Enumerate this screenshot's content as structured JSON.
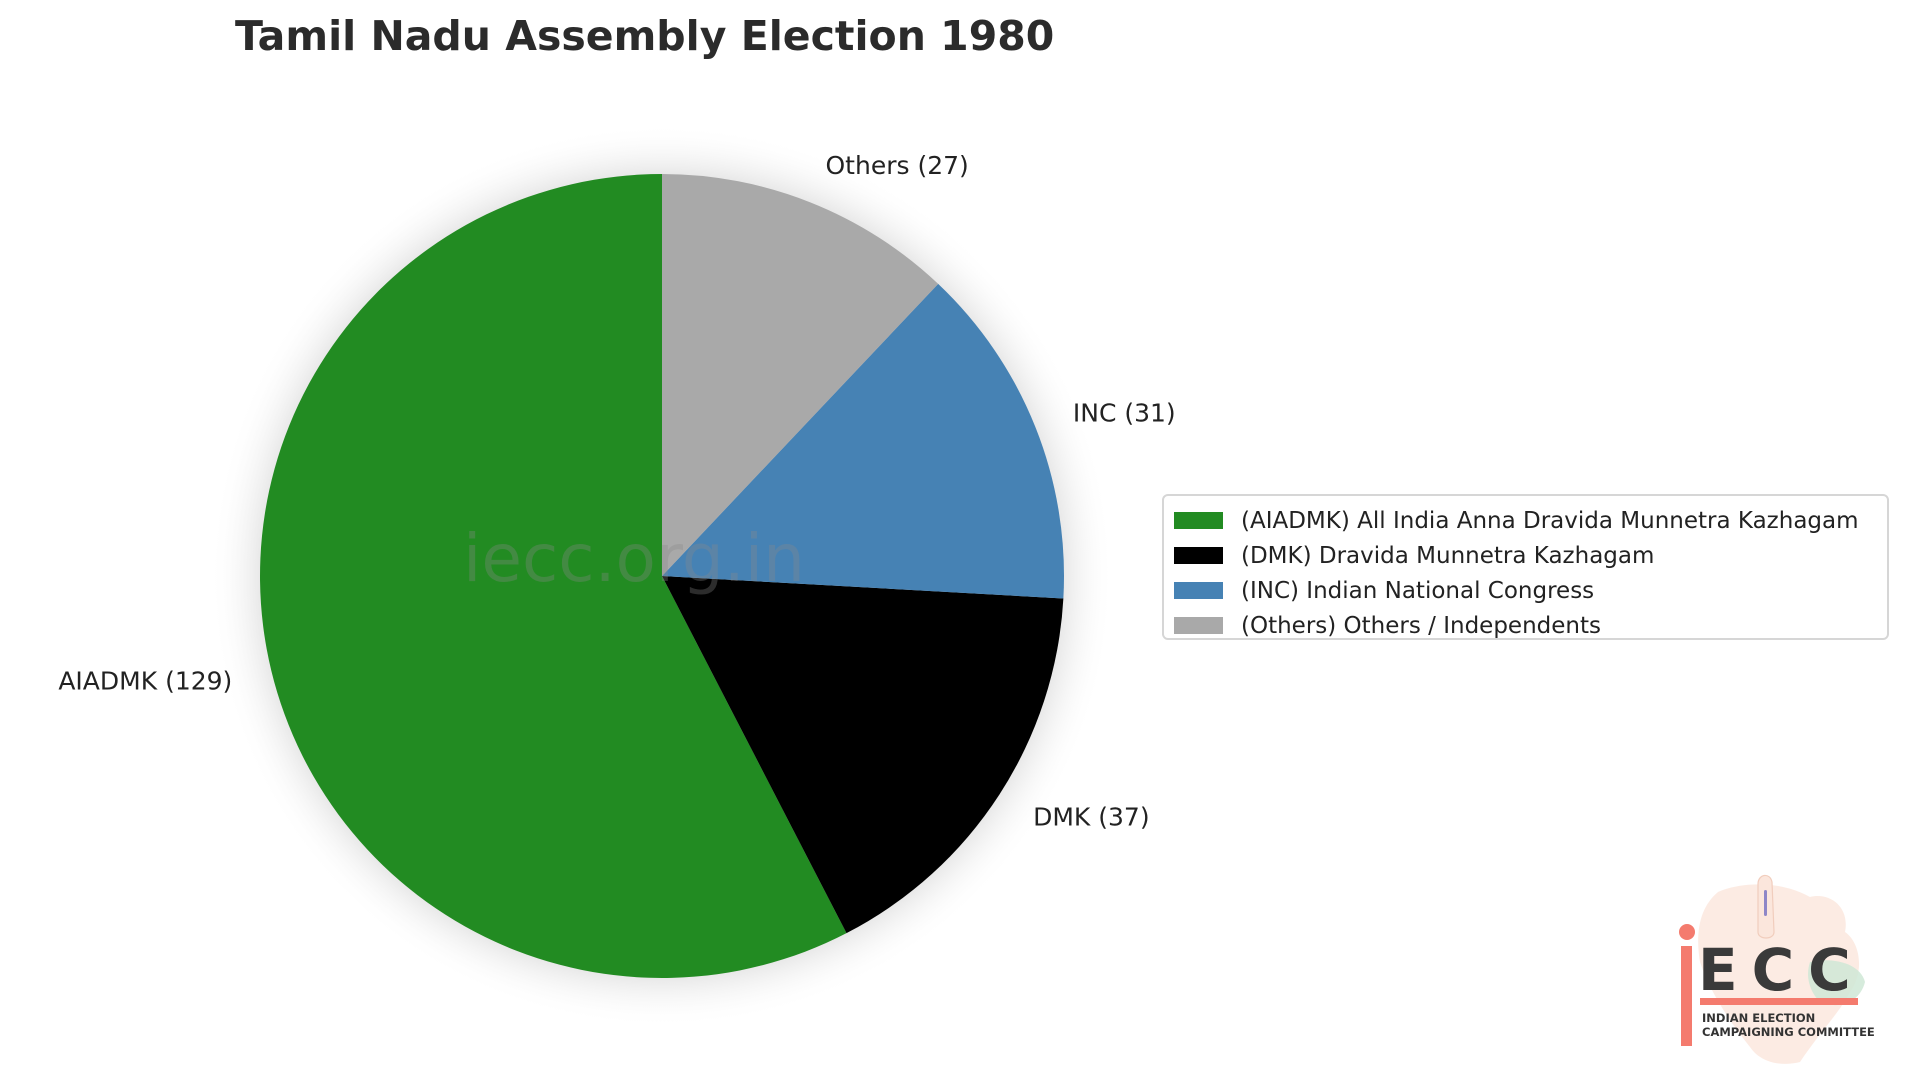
{
  "chart_data": {
    "type": "pie",
    "title": "Tamil Nadu Assembly Election 1980",
    "start_angle_deg": 90,
    "direction": "counterclockwise",
    "slices": [
      {
        "key": "AIADMK",
        "label": "AIADMK (129)",
        "value": 129,
        "color": "#228B22",
        "legend": "(AIADMK) All India Anna Dravida Munnetra Kazhagam"
      },
      {
        "key": "DMK",
        "label": "DMK (37)",
        "value": 37,
        "color": "#000000",
        "legend": "(DMK) Dravida Munnetra Kazhagam"
      },
      {
        "key": "INC",
        "label": "INC (31)",
        "value": 31,
        "color": "#4682B4",
        "legend": "(INC) Indian National Congress"
      },
      {
        "key": "Others",
        "label": "Others (27)",
        "value": 27,
        "color": "#A9A9A9",
        "legend": "(Others) Others / Independents"
      }
    ],
    "legend_placement": "right"
  },
  "watermark": "iecc.org.in",
  "logo": {
    "letters": "ECC",
    "line1": "INDIAN ELECTION",
    "line2": "CAMPAIGNING COMMITTEE",
    "accent_color": "#f47b6e"
  }
}
